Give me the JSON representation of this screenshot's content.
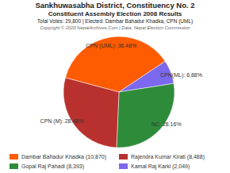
{
  "chart_data": {
    "type": "pie",
    "title": "Sankhuwasabha District, Constituency No. 2",
    "subtitle": "Constituent Assembly Election 2008 Results",
    "annotations": [
      "Total Votes: 29,800 | Elected: Dambar Bahadur Khadka, CPN (UML)",
      "Copyright © 2020 NepalArchives.Com | Data: Nepal Election Commission"
    ],
    "categories": [
      "CPN (UML)",
      "CPN(ML)",
      "NC",
      "CPN (M)"
    ],
    "values": [
      36.48,
      6.88,
      28.16,
      28.48
    ],
    "value_labels": [
      "36.48%",
      "6.88%",
      "28.16%",
      "28.48%"
    ],
    "colors": [
      "#ff5b00",
      "#7b68ee",
      "#2e8b3a",
      "#b8312f"
    ],
    "data_labels": true,
    "legend_entries": [
      {
        "label": "Dambar Bahadur Khadka (10,870)",
        "color": "#ff5b00"
      },
      {
        "label": "Rajendra Kumar Kirati (8,488)",
        "color": "#b8312f"
      },
      {
        "label": "Gopal Raj Pahadi (8,393)",
        "color": "#2e8b3a"
      },
      {
        "label": "Kamal Raj Karki (2,049)",
        "color": "#7b68ee"
      }
    ]
  }
}
